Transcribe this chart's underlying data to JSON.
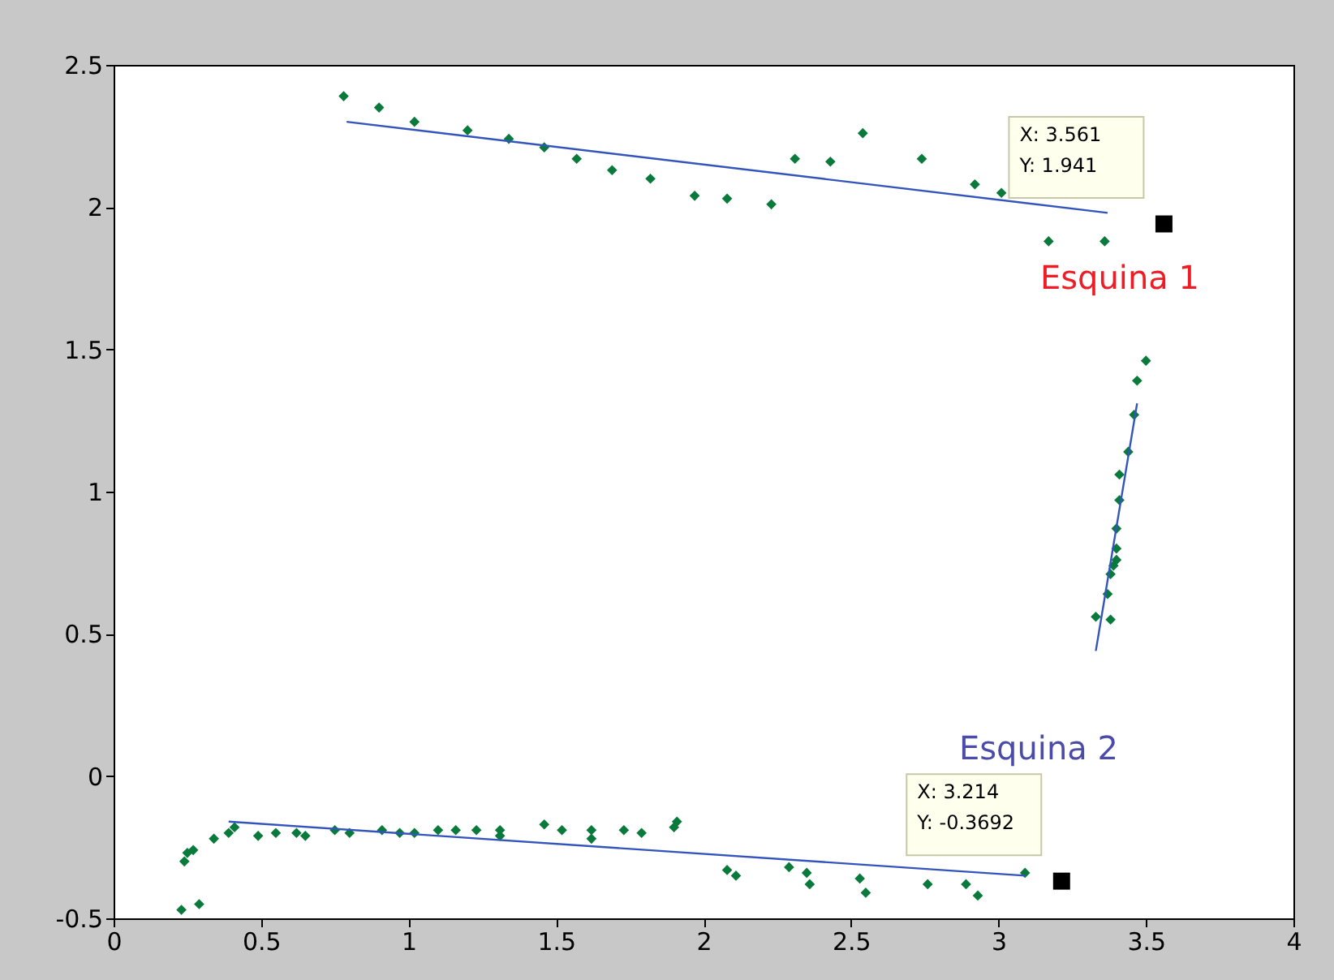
{
  "chart_data": {
    "type": "scatter",
    "grid": false,
    "xlim": [
      0,
      4
    ],
    "xticks": [
      0,
      0.5,
      1,
      1.5,
      2,
      2.5,
      3,
      3.5,
      4
    ],
    "ylim": [
      -0.5,
      2.5
    ],
    "yticks": [
      -0.5,
      0,
      0.5,
      1,
      1.5,
      2,
      2.5
    ],
    "series": [
      {
        "color": "#0a7a3c",
        "marker": "diamond",
        "x": [
          0.78,
          0.9,
          1.02,
          1.2,
          1.34,
          1.46,
          1.57,
          1.69,
          1.82,
          1.97,
          2.08,
          2.23,
          2.31,
          2.43,
          2.54,
          2.74,
          2.92,
          3.01,
          3.17,
          3.36
        ],
        "values": [
          2.39,
          2.35,
          2.3,
          2.27,
          2.24,
          2.21,
          2.17,
          2.13,
          2.1,
          2.04,
          2.03,
          2.01,
          2.17,
          2.16,
          2.26,
          2.17,
          2.08,
          2.05,
          1.88,
          1.88
        ]
      },
      {
        "type": "line",
        "marker": "none",
        "line_style": "solid",
        "color": "#3355bb",
        "x": [
          0.79,
          3.37
        ],
        "values": [
          2.3,
          1.98
        ]
      },
      {
        "color": "#0a7a3c",
        "marker": "diamond",
        "x": [
          3.5,
          3.47,
          3.46,
          3.44,
          3.41,
          3.41,
          3.4,
          3.4,
          3.4,
          3.39,
          3.38,
          3.37,
          3.33,
          3.38
        ],
        "values": [
          1.46,
          1.39,
          1.27,
          1.14,
          1.06,
          0.97,
          0.87,
          0.8,
          0.76,
          0.74,
          0.71,
          0.64,
          0.56,
          0.55
        ]
      },
      {
        "type": "line",
        "marker": "none",
        "line_style": "solid",
        "color": "#3355bb",
        "x": [
          3.33,
          3.47
        ],
        "values": [
          0.44,
          1.31
        ]
      },
      {
        "color": "#0a7a3c",
        "marker": "diamond",
        "x": [
          0.23,
          0.29,
          0.24,
          0.25,
          0.27,
          0.34,
          0.39,
          0.41,
          0.49,
          0.55,
          0.62,
          0.65,
          0.75,
          0.8,
          0.91,
          0.97,
          1.02,
          1.1,
          1.16,
          1.23,
          1.31,
          1.31,
          1.46,
          1.52,
          1.62,
          1.62,
          1.73,
          1.79,
          1.91,
          1.9,
          2.08,
          2.11,
          2.29,
          2.35,
          2.36,
          2.53,
          2.55,
          2.76,
          2.89,
          2.93,
          3.09
        ],
        "values": [
          -0.47,
          -0.45,
          -0.3,
          -0.27,
          -0.26,
          -0.22,
          -0.2,
          -0.18,
          -0.21,
          -0.2,
          -0.2,
          -0.21,
          -0.19,
          -0.2,
          -0.19,
          -0.2,
          -0.2,
          -0.19,
          -0.19,
          -0.19,
          -0.19,
          -0.21,
          -0.17,
          -0.19,
          -0.19,
          -0.22,
          -0.19,
          -0.2,
          -0.16,
          -0.18,
          -0.33,
          -0.35,
          -0.32,
          -0.34,
          -0.38,
          -0.36,
          -0.41,
          -0.38,
          -0.38,
          -0.42,
          -0.34
        ]
      },
      {
        "type": "line",
        "marker": "none",
        "line_style": "solid",
        "color": "#3355bb",
        "x": [
          0.39,
          3.09
        ],
        "values": [
          -0.16,
          -0.35
        ]
      },
      {
        "color": "#000000",
        "marker": "square",
        "x": [
          3.561,
          3.214
        ],
        "values": [
          1.941,
          -0.3692
        ]
      }
    ],
    "annotations": [
      "X: 3.561\nY: 1.941",
      "X: 3.214\nY: -0.3692",
      "Esquina 1",
      "Esquina 2"
    ]
  }
}
